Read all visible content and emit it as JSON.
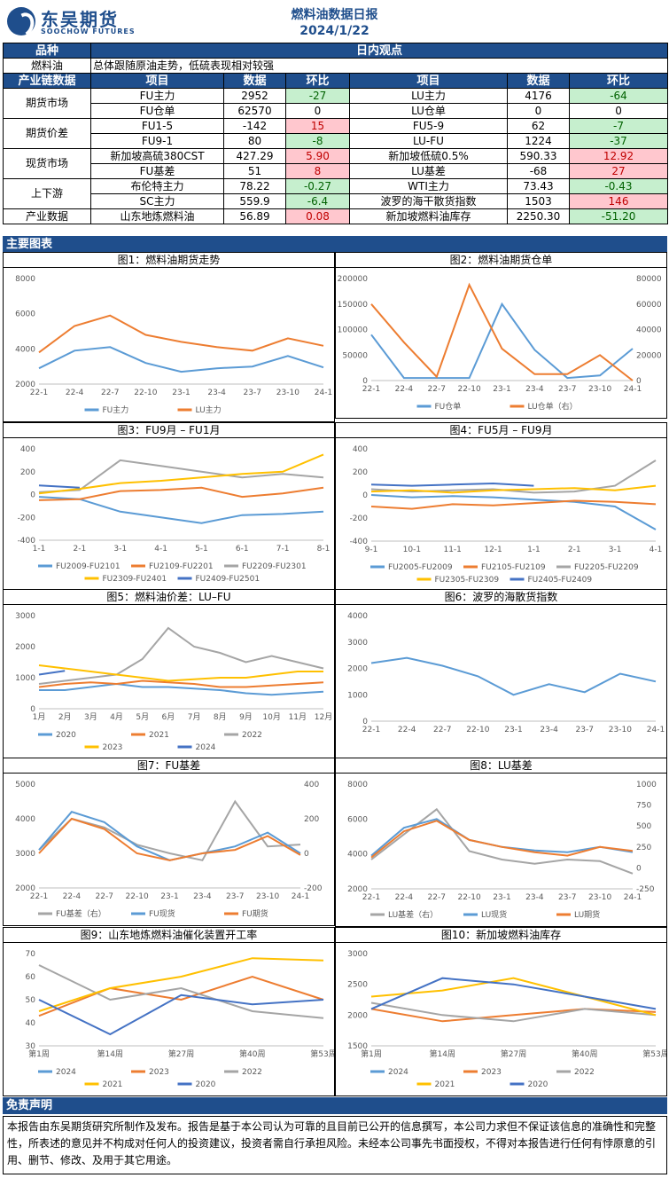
{
  "header": {
    "logo_cn": "东吴期货",
    "logo_en": "SOOCHOW FUTURES",
    "title": "燃料油数据日报",
    "date": "2024/1/22"
  },
  "view": {
    "col1": "品种",
    "col2": "日内观点",
    "product": "燃料油",
    "text": "总体跟随原油走势，低硫表现相对较强"
  },
  "table": {
    "headers": [
      "产业链数据",
      "项目",
      "数据",
      "环比",
      "项目",
      "数据",
      "环比"
    ],
    "rows": [
      {
        "group": "期货市场",
        "span": 2,
        "a": "FU主力",
        "av": "2952",
        "ac": "-27",
        "acs": "gn",
        "b": "LU主力",
        "bv": "4176",
        "bc": "-64",
        "bcs": "gn"
      },
      {
        "a": "FU仓单",
        "av": "62570",
        "ac": "0",
        "acs": "",
        "b": "LU仓单",
        "bv": "0",
        "bc": "0",
        "bcs": ""
      },
      {
        "group": "期货价差",
        "span": 2,
        "a": "FU1-5",
        "av": "-142",
        "ac": "15",
        "acs": "rd",
        "b": "FU5-9",
        "bv": "62",
        "bc": "-7",
        "bcs": "gn"
      },
      {
        "a": "FU9-1",
        "av": "80",
        "ac": "-8",
        "acs": "gn",
        "b": "LU-FU",
        "bv": "1224",
        "bc": "-37",
        "bcs": "gn"
      },
      {
        "group": "现货市场",
        "span": 2,
        "a": "新加坡高硫380CST",
        "av": "427.29",
        "ac": "5.90",
        "acs": "rd",
        "b": "新加坡低硫0.5%",
        "bv": "590.33",
        "bc": "12.92",
        "bcs": "rd"
      },
      {
        "a": "FU基差",
        "av": "51",
        "ac": "8",
        "acs": "rd",
        "b": "LU基差",
        "bv": "-68",
        "bc": "27",
        "bcs": "rd"
      },
      {
        "group": "上下游",
        "span": 2,
        "a": "布伦特主力",
        "av": "78.22",
        "ac": "-0.27",
        "acs": "gn",
        "b": "WTI主力",
        "bv": "73.43",
        "bc": "-0.43",
        "bcs": "gn"
      },
      {
        "a": "SC主力",
        "av": "559.9",
        "ac": "-6.4",
        "acs": "gn",
        "b": "波罗的海干散货指数",
        "bv": "1503",
        "bc": "146",
        "bcs": "rd"
      },
      {
        "group": "产业数据",
        "span": 1,
        "a": "山东地炼燃料油",
        "av": "56.89",
        "ac": "0.08",
        "acs": "rd",
        "b": "新加坡燃料油库存",
        "bv": "2250.30",
        "bc": "-51.20",
        "bcs": "gn"
      }
    ]
  },
  "sections": {
    "charts": "主要图表",
    "disclaimer": "免责声明"
  },
  "disclaimer": "本报告由东吴期货研究所制作及发布。报告是基于本公司认为可靠的且目前已公开的信息撰写，本公司力求但不保证该信息的准确性和完整性，所表述的意见并不构成对任何人的投资建议，投资者需自行承担风险。未经本公司事先书面授权，不得对本报告进行任何有悖原意的引用、删节、修改、及用于其它用途。",
  "chart_data": [
    {
      "type": "line",
      "title": "图1：燃料油期货走势",
      "x": [
        "22-1",
        "22-4",
        "22-7",
        "22-10",
        "23-1",
        "23-4",
        "23-7",
        "23-10",
        "24-1"
      ],
      "ylim": [
        2000,
        8000
      ],
      "yticks": [
        "8000",
        "6000",
        "4000",
        "2000"
      ],
      "series": [
        {
          "name": "FU主力",
          "color": "#5b9bd5",
          "values": [
            2900,
            3900,
            4100,
            3200,
            2700,
            2900,
            3000,
            3600,
            2950
          ]
        },
        {
          "name": "LU主力",
          "color": "#ed7d31",
          "values": [
            3800,
            5300,
            5900,
            4800,
            4400,
            4100,
            3900,
            4600,
            4176
          ]
        }
      ]
    },
    {
      "type": "line",
      "title": "图2：燃料油期货仓单",
      "x": [
        "22-1",
        "22-4",
        "22-7",
        "22-10",
        "23-1",
        "23-4",
        "23-7",
        "23-10",
        "24-1"
      ],
      "ylim": [
        0,
        200000
      ],
      "yticks": [
        "200000",
        "150000",
        "100000",
        "50000",
        "0"
      ],
      "yticks_right": [
        "80000",
        "60000",
        "40000",
        "20000",
        "0"
      ],
      "series": [
        {
          "name": "FU仓单",
          "color": "#5b9bd5",
          "values": [
            90000,
            5000,
            5000,
            5000,
            150000,
            60000,
            5000,
            10000,
            62570
          ]
        },
        {
          "name": "LU仓单（右）",
          "color": "#ed7d31",
          "values": [
            60000,
            30000,
            3000,
            75000,
            25000,
            5000,
            5000,
            20000,
            0
          ]
        }
      ]
    },
    {
      "type": "line",
      "title": "图3：FU9月 – FU1月",
      "x": [
        "1-1",
        "2-1",
        "3-1",
        "4-1",
        "5-1",
        "6-1",
        "7-1",
        "8-1"
      ],
      "ylim": [
        -400,
        400
      ],
      "yticks": [
        "400",
        "200",
        "0",
        "-200",
        "-400"
      ],
      "series": [
        {
          "name": "FU2009-FU2101",
          "color": "#5b9bd5",
          "values": [
            -20,
            -40,
            -150,
            -200,
            -250,
            -180,
            -170,
            -150
          ]
        },
        {
          "name": "FU2109-FU2201",
          "color": "#ed7d31",
          "values": [
            -50,
            -40,
            30,
            40,
            60,
            -20,
            10,
            60
          ]
        },
        {
          "name": "FU2209-FU2301",
          "color": "#a5a5a5",
          "values": [
            20,
            40,
            300,
            250,
            200,
            150,
            180,
            150
          ]
        },
        {
          "name": "FU2309-FU2401",
          "color": "#ffc000",
          "values": [
            10,
            50,
            100,
            120,
            150,
            180,
            200,
            350
          ]
        },
        {
          "name": "FU2409-FU2501",
          "color": "#4472c4",
          "values": [
            80,
            60,
            null,
            null,
            null,
            null,
            null,
            null
          ]
        }
      ]
    },
    {
      "type": "line",
      "title": "图4：FU5月 – FU9月",
      "x": [
        "9-1",
        "10-1",
        "11-1",
        "12-1",
        "1-1",
        "2-1",
        "3-1",
        "4-1"
      ],
      "ylim": [
        -400,
        400
      ],
      "yticks": [
        "400",
        "200",
        "0",
        "-200",
        "-400"
      ],
      "series": [
        {
          "name": "FU2005-FU2009",
          "color": "#5b9bd5",
          "values": [
            0,
            -20,
            -10,
            -20,
            -40,
            -60,
            -100,
            -300
          ]
        },
        {
          "name": "FU2105-FU2109",
          "color": "#ed7d31",
          "values": [
            -100,
            -120,
            -80,
            -90,
            -70,
            -50,
            -60,
            -80
          ]
        },
        {
          "name": "FU2205-FU2209",
          "color": "#a5a5a5",
          "values": [
            50,
            30,
            40,
            50,
            20,
            30,
            80,
            300
          ]
        },
        {
          "name": "FU2305-FU2309",
          "color": "#ffc000",
          "values": [
            30,
            40,
            20,
            40,
            50,
            60,
            40,
            80
          ]
        },
        {
          "name": "FU2405-FU2409",
          "color": "#4472c4",
          "values": [
            90,
            80,
            90,
            100,
            80,
            null,
            null,
            null
          ]
        }
      ]
    },
    {
      "type": "line",
      "title": "图5：燃料油价差：LU–FU",
      "x": [
        "1月",
        "2月",
        "3月",
        "4月",
        "5月",
        "6月",
        "7月",
        "8月",
        "9月",
        "10月",
        "11月",
        "12月"
      ],
      "ylim": [
        0,
        3000
      ],
      "yticks": [
        "3000",
        "2000",
        "1000",
        "0"
      ],
      "series": [
        {
          "name": "2020",
          "color": "#5b9bd5",
          "values": [
            600,
            600,
            700,
            800,
            700,
            700,
            650,
            600,
            500,
            450,
            500,
            550
          ]
        },
        {
          "name": "2021",
          "color": "#ed7d31",
          "values": [
            700,
            800,
            850,
            800,
            900,
            850,
            800,
            700,
            700,
            750,
            800,
            850
          ]
        },
        {
          "name": "2022",
          "color": "#a5a5a5",
          "values": [
            800,
            900,
            1000,
            1100,
            1600,
            2600,
            2000,
            1800,
            1500,
            1700,
            1500,
            1300
          ]
        },
        {
          "name": "2023",
          "color": "#ffc000",
          "values": [
            1400,
            1300,
            1200,
            1100,
            1000,
            900,
            950,
            1000,
            1000,
            1100,
            1200,
            1200
          ]
        },
        {
          "name": "2024",
          "color": "#4472c4",
          "values": [
            1100,
            1224,
            null,
            null,
            null,
            null,
            null,
            null,
            null,
            null,
            null,
            null
          ]
        }
      ]
    },
    {
      "type": "line",
      "title": "图6：波罗的海散货指数",
      "x": [
        "22-1",
        "22-4",
        "22-7",
        "22-10",
        "23-1",
        "23-4",
        "23-7",
        "23-10",
        "24-1"
      ],
      "ylim": [
        0,
        4000
      ],
      "yticks": [
        "4000",
        "3000",
        "2000",
        "1000",
        "0"
      ],
      "series": [
        {
          "name": "",
          "color": "#5b9bd5",
          "values": [
            2200,
            2400,
            2100,
            1700,
            1000,
            1400,
            1100,
            1800,
            1503
          ]
        }
      ]
    },
    {
      "type": "line",
      "title": "图7：FU基差",
      "x": [
        "22-1",
        "22-4",
        "22-7",
        "22-10",
        "23-1",
        "23-4",
        "23-7",
        "23-10",
        "24-1"
      ],
      "ylim": [
        2000,
        5000
      ],
      "yticks": [
        "5000",
        "4000",
        "3000",
        "2000"
      ],
      "yticks_right": [
        "400",
        "200",
        "0",
        "-200"
      ],
      "series": [
        {
          "name": "FU基差（右）",
          "color": "#a5a5a5",
          "values": [
            20,
            200,
            150,
            50,
            0,
            -40,
            300,
            40,
            51
          ]
        },
        {
          "name": "FU现货",
          "color": "#5b9bd5",
          "values": [
            3100,
            4200,
            3900,
            3200,
            2800,
            3000,
            3200,
            3600,
            3000
          ]
        },
        {
          "name": "FU期货",
          "color": "#ed7d31",
          "values": [
            3000,
            4000,
            3700,
            3000,
            2800,
            3000,
            3100,
            3500,
            2952
          ]
        }
      ]
    },
    {
      "type": "line",
      "title": "图8：LU基差",
      "x": [
        "22-1",
        "22-4",
        "22-7",
        "22-10",
        "23-1",
        "23-4",
        "23-7",
        "23-10",
        "24-1"
      ],
      "ylim": [
        2000,
        8000
      ],
      "yticks": [
        "8000",
        "6000",
        "4000",
        "2000"
      ],
      "yticks_right": [
        "1000",
        "750",
        "500",
        "250",
        "0",
        "-250"
      ],
      "series": [
        {
          "name": "LU基差（右）",
          "color": "#a5a5a5",
          "values": [
            100,
            400,
            700,
            200,
            100,
            50,
            100,
            80,
            -68
          ]
        },
        {
          "name": "LU现货",
          "color": "#5b9bd5",
          "values": [
            3900,
            5500,
            6000,
            4800,
            4400,
            4200,
            4100,
            4400,
            4100
          ]
        },
        {
          "name": "LU期货",
          "color": "#ed7d31",
          "values": [
            3800,
            5300,
            5900,
            4800,
            4400,
            4100,
            3900,
            4400,
            4176
          ]
        }
      ]
    },
    {
      "type": "line",
      "title": "图9：山东地炼燃料油催化装置开工率",
      "x": [
        "第1周",
        "第14周",
        "第27周",
        "第40周",
        "第53周"
      ],
      "ylim": [
        30,
        70
      ],
      "yticks": [
        "70",
        "60",
        "50",
        "40",
        "30"
      ],
      "series": [
        {
          "name": "2024",
          "color": "#5b9bd5",
          "values": [
            55,
            null,
            null,
            null,
            null
          ]
        },
        {
          "name": "2023",
          "color": "#ed7d31",
          "values": [
            43,
            55,
            50,
            60,
            50
          ]
        },
        {
          "name": "2022",
          "color": "#a5a5a5",
          "values": [
            65,
            50,
            55,
            45,
            42
          ]
        },
        {
          "name": "2021",
          "color": "#ffc000",
          "values": [
            45,
            55,
            60,
            68,
            67
          ]
        },
        {
          "name": "2020",
          "color": "#4472c4",
          "values": [
            50,
            35,
            52,
            48,
            50
          ]
        }
      ]
    },
    {
      "type": "line",
      "title": "图10：新加坡燃料油库存",
      "x": [
        "第1周",
        "第14周",
        "第27周",
        "第40周",
        "第53周"
      ],
      "ylim": [
        1500,
        3000
      ],
      "yticks": [
        "3000",
        "2500",
        "2000",
        "1500"
      ],
      "series": [
        {
          "name": "2024",
          "color": "#5b9bd5",
          "values": [
            2250,
            null,
            null,
            null,
            null
          ]
        },
        {
          "name": "2023",
          "color": "#ed7d31",
          "values": [
            2100,
            1900,
            2000,
            2100,
            2050
          ]
        },
        {
          "name": "2022",
          "color": "#a5a5a5",
          "values": [
            2200,
            2000,
            1900,
            2100,
            2000
          ]
        },
        {
          "name": "2021",
          "color": "#ffc000",
          "values": [
            2300,
            2400,
            2600,
            2300,
            2000
          ]
        },
        {
          "name": "2020",
          "color": "#4472c4",
          "values": [
            2100,
            2600,
            2500,
            2300,
            2100
          ]
        }
      ]
    }
  ]
}
